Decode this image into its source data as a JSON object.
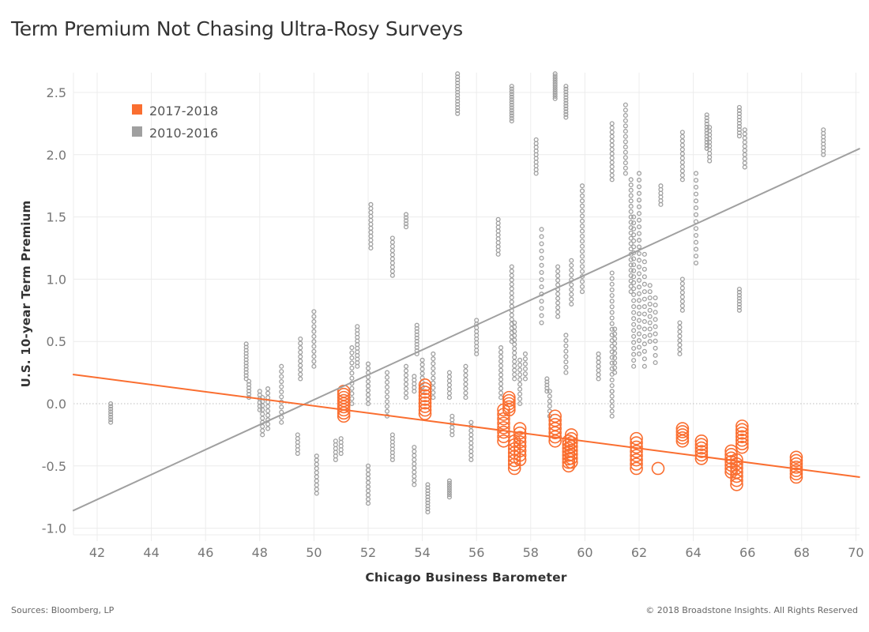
{
  "title": "Term Premium Not Chasing Ultra-Rosy Surveys",
  "footer": {
    "source": "Sources: Bloomberg, LP",
    "copyright": "© 2018 Broadstone Insights. All Rights Reserved"
  },
  "chart_data": {
    "type": "scatter",
    "title": "Term Premium Not Chasing Ultra-Rosy Surveys",
    "xlabel": "Chicago Business Barometer",
    "ylabel": "U.S. 10-year Term Premium",
    "xlim": [
      41.1,
      70.15
    ],
    "ylim": [
      -1.05,
      2.75
    ],
    "xticks": [
      42,
      44,
      46,
      48,
      50,
      52,
      54,
      56,
      58,
      60,
      62,
      64,
      66,
      68,
      70
    ],
    "xtick_labels": [
      "42",
      "44",
      "46",
      "48",
      "50",
      "52",
      "54",
      "56",
      "58",
      "60",
      "62",
      "64",
      "66",
      "68",
      "70"
    ],
    "yticks": [
      -1.0,
      -0.5,
      0.0,
      0.5,
      1.0,
      1.5,
      2.0,
      2.5
    ],
    "ytick_labels": [
      "-1.0",
      "-0.5",
      "0.0",
      "0.5",
      "1.0",
      "1.5",
      "2.0",
      "2.5"
    ],
    "grid": true,
    "zero_line": "dotted",
    "legend_position": "top-left",
    "series": [
      {
        "name": "2017-2018",
        "color": "#fa6e30",
        "marker": "open-circle-large",
        "clusters": [
          {
            "x": 51.1,
            "ymin": -0.1,
            "ymax": 0.1,
            "n": 9
          },
          {
            "x": 54.1,
            "ymin": -0.08,
            "ymax": 0.15,
            "n": 9
          },
          {
            "x": 57.0,
            "ymin": -0.3,
            "ymax": -0.05,
            "n": 8
          },
          {
            "x": 57.2,
            "ymin": -0.05,
            "ymax": 0.05,
            "n": 5
          },
          {
            "x": 57.4,
            "ymin": -0.52,
            "ymax": -0.3,
            "n": 8
          },
          {
            "x": 57.6,
            "ymin": -0.45,
            "ymax": -0.2,
            "n": 8
          },
          {
            "x": 58.9,
            "ymin": -0.3,
            "ymax": -0.1,
            "n": 7
          },
          {
            "x": 59.4,
            "ymin": -0.5,
            "ymax": -0.3,
            "n": 8
          },
          {
            "x": 59.5,
            "ymin": -0.47,
            "ymax": -0.25,
            "n": 8
          },
          {
            "x": 61.9,
            "ymin": -0.52,
            "ymax": -0.28,
            "n": 8
          },
          {
            "x": 62.7,
            "ymin": -0.52,
            "ymax": -0.52,
            "n": 1
          },
          {
            "x": 63.6,
            "ymin": -0.3,
            "ymax": -0.2,
            "n": 5
          },
          {
            "x": 64.3,
            "ymin": -0.44,
            "ymax": -0.3,
            "n": 6
          },
          {
            "x": 65.4,
            "ymin": -0.55,
            "ymax": -0.38,
            "n": 7
          },
          {
            "x": 65.6,
            "ymin": -0.65,
            "ymax": -0.45,
            "n": 7
          },
          {
            "x": 65.8,
            "ymin": -0.35,
            "ymax": -0.18,
            "n": 7
          },
          {
            "x": 67.8,
            "ymin": -0.59,
            "ymax": -0.43,
            "n": 7
          }
        ],
        "trend": {
          "x": [
            41.1,
            70.15
          ],
          "y": [
            0.235,
            -0.59
          ]
        }
      },
      {
        "name": "2010-2016",
        "color": "#a0a0a0",
        "marker": "open-circle-small",
        "clusters": [
          {
            "x": 42.5,
            "ymin": -0.15,
            "ymax": 0.0,
            "n": 8
          },
          {
            "x": 47.5,
            "ymin": 0.2,
            "ymax": 0.48,
            "n": 12
          },
          {
            "x": 47.6,
            "ymin": 0.05,
            "ymax": 0.18,
            "n": 6
          },
          {
            "x": 48.0,
            "ymin": -0.05,
            "ymax": 0.1,
            "n": 6
          },
          {
            "x": 48.1,
            "ymin": -0.25,
            "ymax": 0.05,
            "n": 10
          },
          {
            "x": 48.3,
            "ymin": -0.2,
            "ymax": 0.12,
            "n": 10
          },
          {
            "x": 48.8,
            "ymin": -0.15,
            "ymax": 0.3,
            "n": 12
          },
          {
            "x": 49.4,
            "ymin": -0.4,
            "ymax": -0.25,
            "n": 6
          },
          {
            "x": 49.5,
            "ymin": 0.2,
            "ymax": 0.52,
            "n": 10
          },
          {
            "x": 50.0,
            "ymin": 0.3,
            "ymax": 0.74,
            "n": 12
          },
          {
            "x": 50.1,
            "ymin": -0.72,
            "ymax": -0.42,
            "n": 10
          },
          {
            "x": 50.8,
            "ymin": -0.45,
            "ymax": -0.3,
            "n": 6
          },
          {
            "x": 51.0,
            "ymin": -0.4,
            "ymax": -0.28,
            "n": 5
          },
          {
            "x": 51.4,
            "ymin": 0.0,
            "ymax": 0.45,
            "n": 12
          },
          {
            "x": 51.6,
            "ymin": 0.3,
            "ymax": 0.62,
            "n": 12
          },
          {
            "x": 52.0,
            "ymin": -0.8,
            "ymax": -0.5,
            "n": 10
          },
          {
            "x": 52.0,
            "ymin": 0.0,
            "ymax": 0.32,
            "n": 10
          },
          {
            "x": 52.1,
            "ymin": 1.25,
            "ymax": 1.6,
            "n": 12
          },
          {
            "x": 52.7,
            "ymin": -0.1,
            "ymax": 0.25,
            "n": 10
          },
          {
            "x": 52.9,
            "ymin": -0.45,
            "ymax": -0.25,
            "n": 8
          },
          {
            "x": 52.9,
            "ymin": 1.03,
            "ymax": 1.33,
            "n": 10
          },
          {
            "x": 53.4,
            "ymin": 0.05,
            "ymax": 0.3,
            "n": 8
          },
          {
            "x": 53.4,
            "ymin": 1.42,
            "ymax": 1.52,
            "n": 5
          },
          {
            "x": 53.7,
            "ymin": -0.65,
            "ymax": -0.35,
            "n": 10
          },
          {
            "x": 53.7,
            "ymin": 0.1,
            "ymax": 0.22,
            "n": 5
          },
          {
            "x": 53.8,
            "ymin": 0.4,
            "ymax": 0.63,
            "n": 10
          },
          {
            "x": 54.0,
            "ymin": 0.1,
            "ymax": 0.35,
            "n": 8
          },
          {
            "x": 54.2,
            "ymin": -0.87,
            "ymax": -0.65,
            "n": 10
          },
          {
            "x": 54.4,
            "ymin": 0.05,
            "ymax": 0.4,
            "n": 10
          },
          {
            "x": 55.0,
            "ymin": -0.75,
            "ymax": -0.62,
            "n": 8
          },
          {
            "x": 55.0,
            "ymin": 0.05,
            "ymax": 0.25,
            "n": 7
          },
          {
            "x": 55.1,
            "ymin": -0.25,
            "ymax": -0.1,
            "n": 6
          },
          {
            "x": 55.3,
            "ymin": 2.33,
            "ymax": 2.65,
            "n": 14
          },
          {
            "x": 55.6,
            "ymin": 0.05,
            "ymax": 0.3,
            "n": 8
          },
          {
            "x": 55.8,
            "ymin": -0.45,
            "ymax": -0.15,
            "n": 10
          },
          {
            "x": 56.0,
            "ymin": 0.4,
            "ymax": 0.67,
            "n": 10
          },
          {
            "x": 56.8,
            "ymin": 1.2,
            "ymax": 1.48,
            "n": 10
          },
          {
            "x": 56.9,
            "ymin": 0.05,
            "ymax": 0.45,
            "n": 12
          },
          {
            "x": 57.3,
            "ymin": 2.27,
            "ymax": 2.55,
            "n": 14
          },
          {
            "x": 57.3,
            "ymin": 0.5,
            "ymax": 1.1,
            "n": 18
          },
          {
            "x": 57.4,
            "ymin": 0.2,
            "ymax": 0.65,
            "n": 14
          },
          {
            "x": 57.6,
            "ymin": 0.0,
            "ymax": 0.35,
            "n": 10
          },
          {
            "x": 57.8,
            "ymin": 0.2,
            "ymax": 0.4,
            "n": 6
          },
          {
            "x": 58.2,
            "ymin": 1.85,
            "ymax": 2.12,
            "n": 10
          },
          {
            "x": 58.4,
            "ymin": 0.65,
            "ymax": 1.4,
            "n": 14
          },
          {
            "x": 58.6,
            "ymin": 0.1,
            "ymax": 0.2,
            "n": 5
          },
          {
            "x": 58.7,
            "ymin": -0.1,
            "ymax": 0.1,
            "n": 6
          },
          {
            "x": 58.9,
            "ymin": 2.45,
            "ymax": 2.65,
            "n": 12
          },
          {
            "x": 59.0,
            "ymin": 0.7,
            "ymax": 1.1,
            "n": 12
          },
          {
            "x": 59.3,
            "ymin": 2.3,
            "ymax": 2.55,
            "n": 12
          },
          {
            "x": 59.3,
            "ymin": 0.25,
            "ymax": 0.55,
            "n": 8
          },
          {
            "x": 59.5,
            "ymin": 0.8,
            "ymax": 1.15,
            "n": 10
          },
          {
            "x": 59.9,
            "ymin": 0.9,
            "ymax": 1.75,
            "n": 22
          },
          {
            "x": 60.5,
            "ymin": 0.2,
            "ymax": 0.4,
            "n": 7
          },
          {
            "x": 61.0,
            "ymin": 1.8,
            "ymax": 2.25,
            "n": 14
          },
          {
            "x": 61.0,
            "ymin": 0.1,
            "ymax": 1.05,
            "n": 22
          },
          {
            "x": 61.0,
            "ymin": -0.1,
            "ymax": 0.1,
            "n": 6
          },
          {
            "x": 61.1,
            "ymin": 0.25,
            "ymax": 0.6,
            "n": 10
          },
          {
            "x": 61.5,
            "ymin": 1.85,
            "ymax": 2.4,
            "n": 14
          },
          {
            "x": 61.7,
            "ymin": 0.9,
            "ymax": 1.8,
            "n": 22
          },
          {
            "x": 61.8,
            "ymin": 0.3,
            "ymax": 1.5,
            "n": 26
          },
          {
            "x": 62.0,
            "ymin": 0.4,
            "ymax": 1.85,
            "n": 28
          },
          {
            "x": 62.2,
            "ymin": 0.3,
            "ymax": 1.2,
            "n": 16
          },
          {
            "x": 62.4,
            "ymin": 0.5,
            "ymax": 0.95,
            "n": 10
          },
          {
            "x": 62.6,
            "ymin": 0.33,
            "ymax": 0.85,
            "n": 10
          },
          {
            "x": 62.8,
            "ymin": 1.6,
            "ymax": 1.75,
            "n": 6
          },
          {
            "x": 63.5,
            "ymin": 0.4,
            "ymax": 0.65,
            "n": 8
          },
          {
            "x": 63.6,
            "ymin": 0.75,
            "ymax": 1.0,
            "n": 8
          },
          {
            "x": 63.6,
            "ymin": 1.8,
            "ymax": 2.18,
            "n": 12
          },
          {
            "x": 64.1,
            "ymin": 1.13,
            "ymax": 1.85,
            "n": 14
          },
          {
            "x": 64.5,
            "ymin": 2.05,
            "ymax": 2.32,
            "n": 12
          },
          {
            "x": 64.6,
            "ymin": 1.95,
            "ymax": 2.22,
            "n": 10
          },
          {
            "x": 65.7,
            "ymin": 0.75,
            "ymax": 0.92,
            "n": 8
          },
          {
            "x": 65.7,
            "ymin": 2.15,
            "ymax": 2.38,
            "n": 10
          },
          {
            "x": 65.9,
            "ymin": 1.9,
            "ymax": 2.2,
            "n": 10
          },
          {
            "x": 68.8,
            "ymin": 2.0,
            "ymax": 2.2,
            "n": 8
          }
        ],
        "trend": {
          "x": [
            41.1,
            70.15
          ],
          "y": [
            -0.86,
            2.05
          ]
        }
      }
    ]
  }
}
